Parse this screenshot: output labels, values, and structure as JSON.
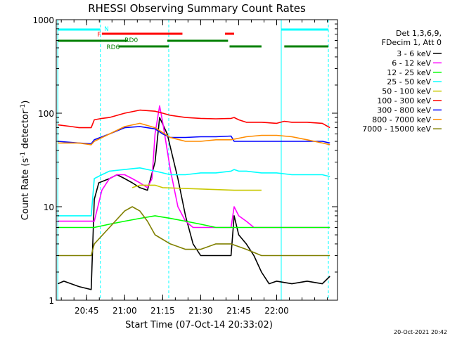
{
  "chart_data": {
    "type": "line",
    "title": "RHESSI Observing Summary Count Rates",
    "xlabel": "Start Time (07-Oct-14 20:33:02)",
    "ylabel_main": "Count Rate (s",
    "ylabel_sup1": "-1",
    "ylabel_mid": " detector",
    "ylabel_sup2": "-1",
    "ylabel_end": ")",
    "yscale": "log",
    "ylim": [
      1,
      1000
    ],
    "xlim_minutes": [
      20.55,
      22.4
    ],
    "y_ticks": [
      {
        "v": 1,
        "label": "1"
      },
      {
        "v": 10,
        "label": "10"
      },
      {
        "v": 100,
        "label": "100"
      },
      {
        "v": 1000,
        "label": "1000"
      }
    ],
    "x_ticks": [
      {
        "v": 20.75,
        "label": "20:45"
      },
      {
        "v": 21.0,
        "label": "21:00"
      },
      {
        "v": 21.25,
        "label": "21:15"
      },
      {
        "v": 21.5,
        "label": "21:30"
      },
      {
        "v": 21.75,
        "label": "21:45"
      },
      {
        "v": 22.0,
        "label": "22:00"
      }
    ],
    "legend_header": [
      "Det 1,3,6,9,",
      "FDecim 1, Att 0"
    ],
    "series": [
      {
        "name": "3 - 6 keV",
        "color": "#000000",
        "x": [
          20.56,
          20.6,
          20.7,
          20.78,
          20.8,
          20.83,
          20.9,
          20.95,
          21.0,
          21.05,
          21.1,
          21.15,
          21.2,
          21.23,
          21.28,
          21.35,
          21.4,
          21.45,
          21.5,
          21.55,
          21.62,
          21.7,
          21.72,
          21.75,
          21.8,
          21.85,
          21.9,
          21.95,
          22.0,
          22.1,
          22.2,
          22.3,
          22.35
        ],
        "y": [
          1.5,
          1.6,
          1.4,
          1.3,
          12,
          18,
          20,
          22,
          20,
          18,
          16,
          15,
          30,
          90,
          60,
          20,
          8,
          4,
          3,
          3,
          3,
          3,
          8,
          5,
          4,
          3,
          2,
          1.5,
          1.6,
          1.5,
          1.6,
          1.5,
          1.8
        ]
      },
      {
        "name": "6 - 12 keV",
        "color": "#ff00ff",
        "x": [
          20.56,
          20.7,
          20.78,
          20.8,
          20.85,
          20.9,
          20.95,
          21.0,
          21.05,
          21.1,
          21.15,
          21.18,
          21.2,
          21.23,
          21.25,
          21.3,
          21.35,
          21.4,
          21.45,
          21.5,
          21.55,
          21.62,
          21.7,
          21.72,
          21.75,
          21.8,
          21.85,
          21.9,
          21.95,
          22.0,
          22.1,
          22.2,
          22.3,
          22.35
        ],
        "y": [
          7,
          7,
          7,
          7,
          15,
          20,
          22,
          22,
          20,
          18,
          16,
          20,
          60,
          120,
          80,
          25,
          10,
          7,
          6,
          6,
          6,
          6,
          6,
          10,
          8,
          7,
          6,
          6,
          6,
          6,
          6,
          6,
          6,
          6
        ]
      },
      {
        "name": "12 - 25 keV",
        "color": "#00ff00",
        "x": [
          20.56,
          20.7,
          20.8,
          20.9,
          21.0,
          21.1,
          21.2,
          21.3,
          21.4,
          21.5,
          21.6,
          21.7,
          21.8,
          21.9,
          22.0,
          22.1,
          22.2,
          22.3,
          22.35
        ],
        "y": [
          6,
          6,
          6,
          6.5,
          7,
          7.5,
          8,
          7.5,
          7,
          6.5,
          6,
          6,
          6,
          6,
          6,
          6,
          6,
          6,
          6
        ]
      },
      {
        "name": "25 - 50 keV",
        "color": "#00ffff",
        "x": [
          20.56,
          20.7,
          20.78,
          20.8,
          20.85,
          20.9,
          21.0,
          21.1,
          21.2,
          21.25,
          21.3,
          21.4,
          21.5,
          21.6,
          21.7,
          21.72,
          21.75,
          21.8,
          21.9,
          22.0,
          22.1,
          22.2,
          22.3,
          22.35
        ],
        "y": [
          8,
          8,
          8,
          20,
          22,
          24,
          25,
          26,
          24,
          23,
          22,
          22,
          23,
          23,
          24,
          25,
          24,
          24,
          23,
          23,
          22,
          22,
          22,
          21
        ]
      },
      {
        "name": "50 - 100 keV",
        "color": "#c8c800",
        "x": [
          21.05,
          21.1,
          21.15,
          21.2,
          21.25,
          21.72,
          21.75,
          21.8,
          21.85,
          21.9
        ],
        "y": [
          16,
          17,
          17,
          17,
          16,
          15,
          15,
          15,
          15,
          15
        ]
      },
      {
        "name": "100 - 300 keV",
        "color": "#ff0000",
        "x": [
          20.56,
          20.65,
          20.7,
          20.78,
          20.8,
          20.85,
          20.9,
          21.0,
          21.1,
          21.2,
          21.25,
          21.3,
          21.4,
          21.5,
          21.6,
          21.7,
          21.72,
          21.75,
          21.8,
          21.9,
          22.0,
          22.05,
          22.1,
          22.2,
          22.3,
          22.35
        ],
        "y": [
          75,
          72,
          70,
          70,
          85,
          88,
          90,
          100,
          108,
          105,
          100,
          95,
          90,
          88,
          87,
          88,
          90,
          85,
          80,
          80,
          78,
          82,
          80,
          80,
          78,
          70
        ]
      },
      {
        "name": "300 - 800 keV",
        "color": "#0000ff",
        "x": [
          20.56,
          20.7,
          20.78,
          20.8,
          20.9,
          21.0,
          21.1,
          21.2,
          21.25,
          21.3,
          21.4,
          21.5,
          21.6,
          21.7,
          21.72,
          21.75,
          21.8,
          21.9,
          22.0,
          22.1,
          22.2,
          22.3,
          22.35
        ],
        "y": [
          50,
          48,
          47,
          52,
          60,
          70,
          72,
          68,
          60,
          55,
          55,
          56,
          56,
          57,
          50,
          50,
          50,
          50,
          50,
          50,
          50,
          50,
          48
        ]
      },
      {
        "name": "800 - 7000 keV",
        "color": "#ff8c00",
        "x": [
          20.56,
          20.7,
          20.78,
          20.8,
          20.9,
          21.0,
          21.1,
          21.2,
          21.25,
          21.3,
          21.4,
          21.5,
          21.6,
          21.7,
          21.75,
          21.8,
          21.9,
          22.0,
          22.1,
          22.2,
          22.3,
          22.35
        ],
        "y": [
          48,
          48,
          46,
          50,
          60,
          72,
          78,
          70,
          62,
          55,
          50,
          50,
          52,
          52,
          54,
          56,
          58,
          58,
          56,
          52,
          48,
          46
        ]
      },
      {
        "name": "7000 - 15000 keV",
        "color": "#808000",
        "x": [
          20.56,
          20.7,
          20.78,
          20.8,
          20.9,
          21.0,
          21.05,
          21.1,
          21.15,
          21.2,
          21.3,
          21.4,
          21.5,
          21.6,
          21.7,
          21.8,
          21.9,
          22.0,
          22.1,
          22.2,
          22.3,
          22.35
        ],
        "y": [
          3,
          3,
          3,
          4,
          6,
          9,
          10,
          9,
          7,
          5,
          4,
          3.5,
          3.5,
          4,
          4,
          3.5,
          3,
          3,
          3,
          3,
          3,
          3
        ]
      }
    ],
    "flags": [
      {
        "label": "N",
        "color": "#00ffff",
        "segments": [
          [
            20.56,
            20.84
          ],
          [
            22.03,
            22.34
          ]
        ]
      },
      {
        "label": "F",
        "color": "#ff0000",
        "segments": [
          [
            20.85,
            21.38
          ],
          [
            21.66,
            21.72
          ]
        ]
      },
      {
        "label": "RD0",
        "color": "#008000",
        "segments": [
          [
            20.56,
            21.02
          ],
          [
            21.28,
            21.68
          ]
        ]
      },
      {
        "label": "RD6",
        "color": "#008000",
        "segments": [
          [
            20.96,
            21.29
          ],
          [
            21.69,
            21.9
          ],
          [
            22.05,
            22.34
          ]
        ]
      }
    ],
    "vlines": [
      {
        "x": 20.56,
        "color": "#00ffff",
        "dashed": false
      },
      {
        "x": 20.84,
        "color": "#00ffff",
        "dashed": true
      },
      {
        "x": 21.29,
        "color": "#00ffff",
        "dashed": true
      },
      {
        "x": 22.03,
        "color": "#00ffff",
        "dashed": false
      },
      {
        "x": 22.34,
        "color": "#00ffff",
        "dashed": true
      }
    ],
    "footer": "20-Oct-2021 20:42"
  }
}
